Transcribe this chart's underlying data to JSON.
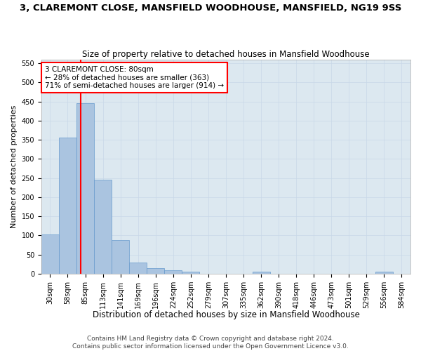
{
  "title": "3, CLAREMONT CLOSE, MANSFIELD WOODHOUSE, MANSFIELD, NG19 9SS",
  "subtitle": "Size of property relative to detached houses in Mansfield Woodhouse",
  "xlabel": "Distribution of detached houses by size in Mansfield Woodhouse",
  "ylabel": "Number of detached properties",
  "footer_line1": "Contains HM Land Registry data © Crown copyright and database right 2024.",
  "footer_line2": "Contains public sector information licensed under the Open Government Licence v3.0.",
  "annotation_line1": "3 CLAREMONT CLOSE: 80sqm",
  "annotation_line2": "← 28% of detached houses are smaller (363)",
  "annotation_line3": "71% of semi-detached houses are larger (914) →",
  "bar_color": "#aac4e0",
  "bar_edge_color": "#6699cc",
  "grid_color": "#c8d8e8",
  "background_color": "#dce8f0",
  "vline_color": "red",
  "annotation_box_edge": "red",
  "bins": [
    "30sqm",
    "58sqm",
    "85sqm",
    "113sqm",
    "141sqm",
    "169sqm",
    "196sqm",
    "224sqm",
    "252sqm",
    "279sqm",
    "307sqm",
    "335sqm",
    "362sqm",
    "390sqm",
    "418sqm",
    "446sqm",
    "473sqm",
    "501sqm",
    "529sqm",
    "556sqm",
    "584sqm"
  ],
  "bar_heights": [
    102,
    355,
    445,
    245,
    88,
    30,
    14,
    10,
    6,
    0,
    0,
    0,
    5,
    0,
    0,
    0,
    0,
    0,
    0,
    5,
    0
  ],
  "ylim": [
    0,
    560
  ],
  "yticks": [
    0,
    50,
    100,
    150,
    200,
    250,
    300,
    350,
    400,
    450,
    500,
    550
  ],
  "vline_x": 1.72,
  "title_fontsize": 9.5,
  "subtitle_fontsize": 8.5,
  "xlabel_fontsize": 8.5,
  "ylabel_fontsize": 8,
  "tick_fontsize": 7,
  "footer_fontsize": 6.5,
  "annotation_fontsize": 7.5
}
